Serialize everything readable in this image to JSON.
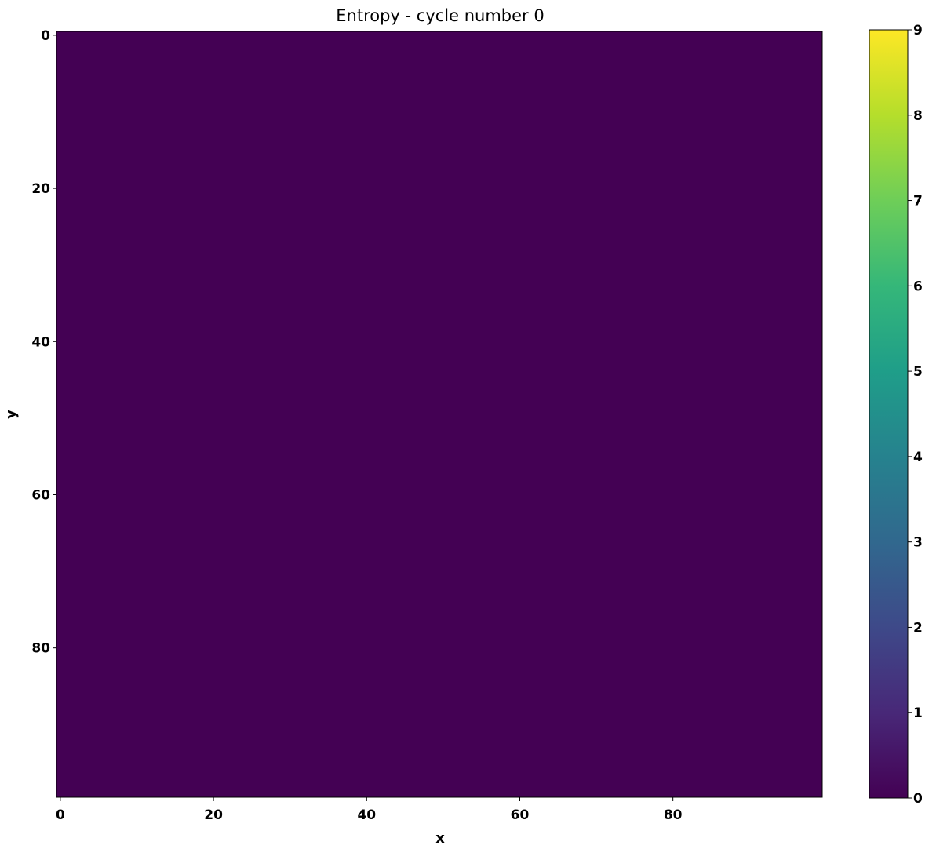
{
  "chart_data": {
    "type": "heatmap",
    "title": "Entropy - cycle number 0",
    "xlabel": "x",
    "ylabel": "y",
    "grid_shape": [
      100,
      100
    ],
    "value_all_cells": 0,
    "xlim": [
      -0.5,
      99.5
    ],
    "ylim": [
      99.5,
      -0.5
    ],
    "xticks": [
      0,
      20,
      40,
      60,
      80
    ],
    "yticks": [
      0,
      20,
      40,
      60,
      80
    ],
    "colorbar": {
      "colormap": "viridis",
      "range": [
        0,
        9
      ],
      "ticks": [
        0,
        1,
        2,
        3,
        4,
        5,
        6,
        7,
        8,
        9
      ]
    }
  },
  "colors": {
    "cell": "#440154",
    "frame": "#000000"
  }
}
